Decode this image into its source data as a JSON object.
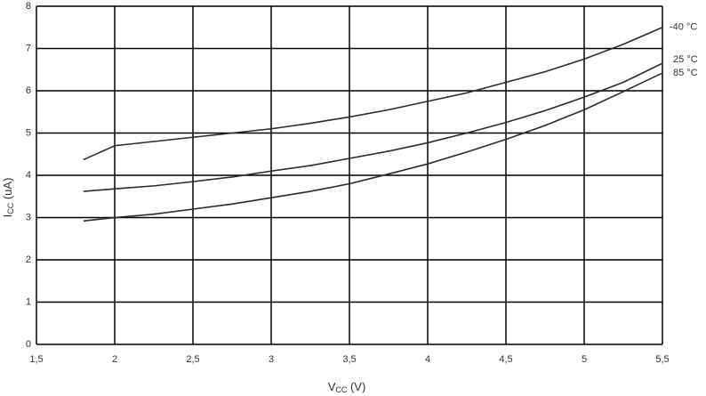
{
  "chart_data": {
    "type": "line",
    "xlabel": [
      "V",
      "CC",
      " (V)"
    ],
    "ylabel": [
      "I",
      "CC",
      " (uA)"
    ],
    "x": [
      1.8,
      2,
      2.25,
      2.5,
      2.75,
      3,
      3.25,
      3.5,
      3.75,
      4,
      4.25,
      4.5,
      4.75,
      5,
      5.25,
      5.5
    ],
    "series": [
      {
        "name": "-40 °C",
        "color": "#2b2b2b",
        "values": [
          4.37,
          4.7,
          4.8,
          4.9,
          5.0,
          5.1,
          5.23,
          5.38,
          5.55,
          5.75,
          5.95,
          6.2,
          6.45,
          6.75,
          7.1,
          7.5
        ]
      },
      {
        "name": "25 °C",
        "color": "#2b2b2b",
        "values": [
          3.62,
          3.68,
          3.75,
          3.85,
          3.96,
          4.1,
          4.23,
          4.4,
          4.57,
          4.77,
          5.0,
          5.25,
          5.53,
          5.85,
          6.2,
          6.65
        ]
      },
      {
        "name": "85 °C",
        "color": "#2b2b2b",
        "values": [
          2.92,
          3.0,
          3.08,
          3.2,
          3.32,
          3.47,
          3.62,
          3.8,
          4.03,
          4.27,
          4.55,
          4.85,
          5.18,
          5.55,
          5.98,
          6.42
        ]
      }
    ],
    "xlim": [
      1.5,
      5.5
    ],
    "xticks": [
      {
        "value": 1.5,
        "label": "1,5"
      },
      2,
      {
        "value": 2.5,
        "label": "2,5"
      },
      3,
      {
        "value": 3.5,
        "label": "3,5"
      },
      4,
      {
        "value": 4.5,
        "label": "4,5"
      },
      5,
      {
        "value": 5.5,
        "label": "5,5"
      }
    ],
    "ylim": [
      0,
      8
    ],
    "yticks": [
      0,
      1,
      2,
      3,
      4,
      5,
      6,
      7,
      8
    ],
    "grid": true
  }
}
